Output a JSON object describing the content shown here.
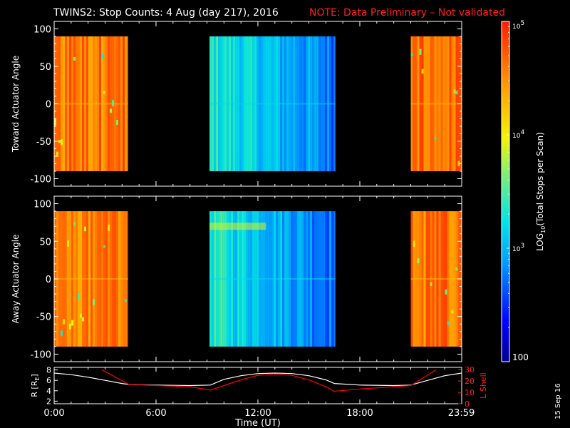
{
  "header": {
    "title": "TWINS2: Stop Counts:  4 Aug (day 217), 2016",
    "note": "NOTE: Data Preliminary – Not validated"
  },
  "footer": {
    "date_stamp": "15 Sep 16"
  },
  "colors": {
    "background": "#000000",
    "axis": "#ffffff",
    "note_red": "#ff2020",
    "radius_line": "#ffffff",
    "lshell_line": "#ff0000"
  },
  "chart_data": [
    {
      "id": "toward",
      "type": "heatmap",
      "title": "",
      "ylabel": "Toward Actuator Angle",
      "xlabel": "",
      "ylim": [
        -110,
        110
      ],
      "yticks": [
        "100",
        "50",
        "0",
        "-50",
        "-100"
      ],
      "ytick_values": [
        100,
        50,
        0,
        -50,
        -100
      ],
      "xlim": [
        0,
        24
      ],
      "data_y_range": [
        -90,
        90
      ],
      "data_blocks_hours": [
        [
          0.0,
          4.35
        ],
        [
          9.15,
          16.55
        ],
        [
          21.0,
          24.0
        ]
      ],
      "block_levels_log10": [
        4.6,
        3.0,
        4.6
      ],
      "ridge_angle": null
    },
    {
      "id": "away",
      "type": "heatmap",
      "title": "",
      "ylabel": "Away Actuator Angle",
      "xlabel": "",
      "ylim": [
        -110,
        110
      ],
      "yticks": [
        "100",
        "50",
        "0",
        "-50",
        "-100"
      ],
      "ytick_values": [
        100,
        50,
        0,
        -50,
        -100
      ],
      "xlim": [
        0,
        24
      ],
      "data_y_range": [
        -90,
        90
      ],
      "data_blocks_hours": [
        [
          0.0,
          4.35
        ],
        [
          9.15,
          16.55
        ],
        [
          21.0,
          24.0
        ]
      ],
      "block_levels_log10": [
        4.6,
        3.0,
        4.6
      ],
      "ridge_angle": 70
    },
    {
      "id": "orbit",
      "type": "line",
      "title": "",
      "xlabel": "Time (UT)",
      "xlim": [
        0,
        24
      ],
      "xticks": [
        "0:00",
        "6:00",
        "12:00",
        "18:00",
        "23:59"
      ],
      "xtick_values": [
        0,
        6,
        12,
        18,
        23.98
      ],
      "y_left": {
        "label": "R [R",
        "label_sub": "E",
        "label_end": "]",
        "lim": [
          1.5,
          8.5
        ],
        "ticks": [
          "8",
          "6",
          "4",
          "2"
        ],
        "tick_values": [
          8,
          6,
          4,
          2
        ]
      },
      "y_right": {
        "label": "L Shell",
        "lim": [
          0,
          32
        ],
        "ticks": [
          "30",
          "20",
          "10",
          "0"
        ],
        "tick_values": [
          30,
          20,
          10,
          0
        ]
      },
      "series": [
        {
          "axis": "left",
          "color": "#ffffff",
          "x": [
            0,
            1,
            2,
            3,
            4,
            4.4,
            6,
            8,
            9.2,
            10,
            11,
            12,
            13,
            14,
            15,
            16,
            16.5,
            18,
            20,
            21,
            22,
            23,
            24
          ],
          "y": [
            7.4,
            7.1,
            6.6,
            6.0,
            5.4,
            5.2,
            5.1,
            5.0,
            5.1,
            6.2,
            6.9,
            7.3,
            7.4,
            7.3,
            6.9,
            6.1,
            5.4,
            5.1,
            5.0,
            5.1,
            6.0,
            6.9,
            7.4
          ]
        },
        {
          "axis": "right",
          "color": "#ff0000",
          "x": [
            2.8,
            4.4,
            6,
            8,
            9.2,
            10,
            11,
            12,
            13,
            14,
            15,
            16,
            16.5,
            18,
            20,
            21,
            22.5
          ],
          "y": [
            30,
            17,
            16,
            15,
            12,
            16,
            21,
            25,
            26,
            25,
            21,
            15,
            11,
            13,
            15,
            16,
            30
          ]
        }
      ]
    }
  ],
  "colorbar": {
    "label": "LOG",
    "label_sub": "10",
    "label_rest": "(Total Stops per Scan)",
    "range_log10": [
      2,
      5
    ],
    "ticks": [
      {
        "log": 5,
        "base": "10",
        "exp": "5"
      },
      {
        "log": 4,
        "base": "10",
        "exp": "4"
      },
      {
        "log": 3,
        "base": "10",
        "exp": "3"
      },
      {
        "log": 2,
        "base": "100",
        "exp": ""
      }
    ]
  }
}
